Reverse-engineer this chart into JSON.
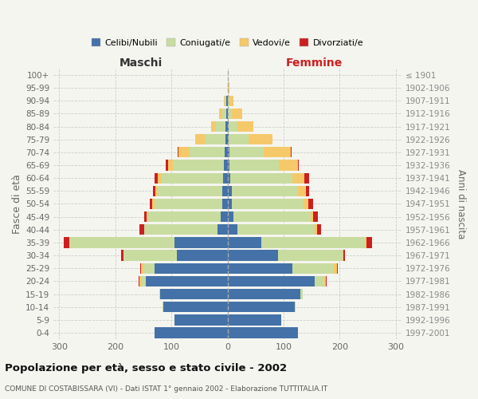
{
  "age_groups": [
    "0-4",
    "5-9",
    "10-14",
    "15-19",
    "20-24",
    "25-29",
    "30-34",
    "35-39",
    "40-44",
    "45-49",
    "50-54",
    "55-59",
    "60-64",
    "65-69",
    "70-74",
    "75-79",
    "80-84",
    "85-89",
    "90-94",
    "95-99",
    "100+"
  ],
  "birth_years": [
    "1997-2001",
    "1992-1996",
    "1987-1991",
    "1982-1986",
    "1977-1981",
    "1972-1976",
    "1967-1971",
    "1962-1966",
    "1957-1961",
    "1952-1956",
    "1947-1951",
    "1942-1946",
    "1937-1941",
    "1932-1936",
    "1927-1931",
    "1922-1926",
    "1917-1921",
    "1912-1916",
    "1907-1911",
    "1902-1906",
    "≤ 1901"
  ],
  "maschi_celibi": [
    130,
    95,
    115,
    120,
    145,
    130,
    90,
    95,
    18,
    12,
    10,
    9,
    8,
    6,
    5,
    3,
    3,
    2,
    2,
    0,
    0
  ],
  "maschi_coniugati": [
    0,
    0,
    1,
    2,
    8,
    20,
    95,
    185,
    130,
    130,
    120,
    115,
    110,
    90,
    62,
    38,
    18,
    8,
    3,
    0,
    0
  ],
  "maschi_vedovi": [
    0,
    0,
    0,
    0,
    4,
    4,
    1,
    2,
    1,
    2,
    4,
    4,
    7,
    10,
    20,
    16,
    8,
    5,
    2,
    0,
    0
  ],
  "maschi_divorziati": [
    0,
    0,
    0,
    0,
    2,
    2,
    3,
    10,
    8,
    5,
    5,
    5,
    5,
    4,
    2,
    0,
    0,
    0,
    0,
    0,
    0
  ],
  "femmine_nubili": [
    125,
    95,
    120,
    130,
    155,
    115,
    90,
    60,
    18,
    10,
    8,
    7,
    5,
    4,
    3,
    2,
    2,
    1,
    1,
    0,
    0
  ],
  "femmine_coniugate": [
    0,
    0,
    1,
    4,
    18,
    75,
    115,
    185,
    138,
    138,
    128,
    118,
    110,
    88,
    62,
    36,
    16,
    7,
    2,
    1,
    0
  ],
  "femmine_vedove": [
    0,
    0,
    0,
    0,
    2,
    5,
    1,
    2,
    3,
    5,
    8,
    14,
    22,
    33,
    48,
    42,
    28,
    18,
    8,
    2,
    0
  ],
  "femmine_divorziate": [
    0,
    0,
    0,
    0,
    2,
    2,
    3,
    10,
    8,
    8,
    8,
    6,
    8,
    2,
    1,
    0,
    0,
    0,
    0,
    0,
    0
  ],
  "colors": {
    "celibi": "#4472a8",
    "coniugati": "#c8dca0",
    "vedovi": "#f5c96a",
    "divorziati": "#cc2020"
  },
  "xlim": 310,
  "title": "Popolazione per età, sesso e stato civile - 2002",
  "subtitle": "COMUNE DI COSTABISSARA (VI) - Dati ISTAT 1° gennaio 2002 - Elaborazione TUTTITALIA.IT",
  "ylabel_left": "Fasce di età",
  "ylabel_right": "Anni di nascita",
  "label_maschi": "Maschi",
  "label_femmine": "Femmine",
  "bg_color": "#f5f5f0",
  "legend_labels": [
    "Celibi/Nubili",
    "Coniugati/e",
    "Vedovi/e",
    "Divorziati/e"
  ]
}
